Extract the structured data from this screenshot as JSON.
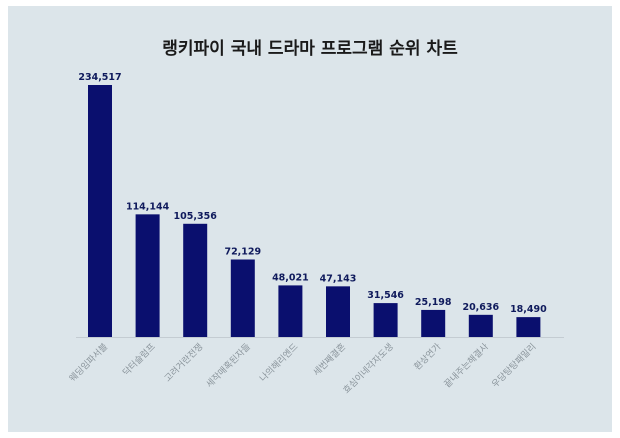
{
  "chart_data": {
    "type": "bar",
    "title": "랭키파이 국내 드라마 프로그램 순위 차트",
    "categories": [
      "웨딩임파서블",
      "닥터슬럼프",
      "고려거란전쟁",
      "세작매혹된자들",
      "나의해리엔드",
      "세번째결혼",
      "효심이네각자도생",
      "환상연가",
      "끝내주는해결사",
      "우당탕탕패밀리"
    ],
    "values": [
      234517,
      114144,
      105356,
      72129,
      48021,
      47143,
      31546,
      25198,
      20636,
      18490
    ],
    "labels": [
      "234,517",
      "114,144",
      "105,356",
      "72,129",
      "48,021",
      "47,143",
      "31,546",
      "25,198",
      "20,636",
      "18,490"
    ],
    "xlabel": "",
    "ylabel": "",
    "ylim": [
      0,
      234517
    ],
    "grid": false,
    "bar_color": "#0a0f6e",
    "background": "#dce5ea"
  }
}
